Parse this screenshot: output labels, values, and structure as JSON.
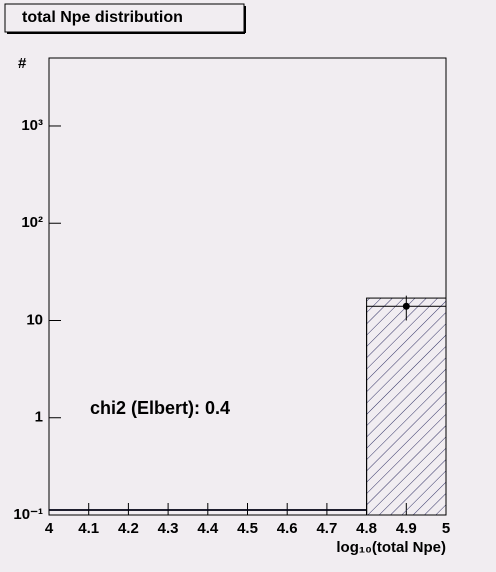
{
  "chart_data": {
    "type": "histogram",
    "title": "total Npe distribution",
    "x_label": "log₁₀(total Npe)",
    "y_label": "#",
    "annotation": "chi2 (Elbert): 0.4",
    "bins": [
      4.0,
      4.2,
      4.4,
      4.6,
      4.8,
      5.0
    ],
    "series": [
      {
        "color": "#000080",
        "hatched": true,
        "values": [
          0,
          0,
          0,
          0,
          17
        ]
      },
      {
        "color": "#000000",
        "hatched": false,
        "values": [
          0,
          0,
          0,
          0,
          14
        ]
      }
    ],
    "points": {
      "x": [
        4.9
      ],
      "y": [
        14
      ],
      "errors": [
        4
      ],
      "color": "#000000"
    },
    "xlim": [
      4,
      5
    ],
    "xticks": [
      4,
      4.1,
      4.2,
      4.3,
      4.4,
      4.5,
      4.6,
      4.7,
      4.8,
      4.9,
      5
    ],
    "ylim": [
      0.1,
      5000
    ],
    "log_y": true,
    "yticks": [
      {
        "value": 0.1,
        "label": "10⁻¹"
      },
      1,
      10,
      {
        "value": 100,
        "label": "10²"
      },
      {
        "value": 1000,
        "label": "10³"
      }
    ]
  }
}
